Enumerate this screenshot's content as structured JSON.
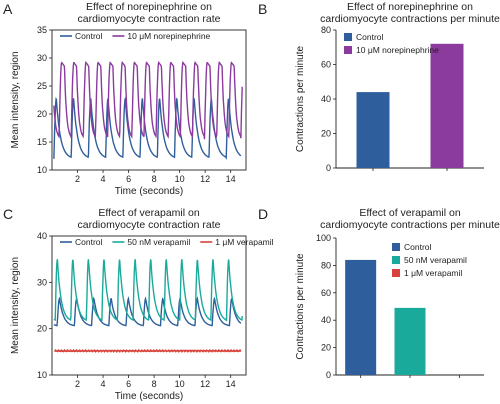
{
  "colors": {
    "blue": "#2e5f9c",
    "purple": "#8b3a9e",
    "teal": "#1aaa9c",
    "red": "#d8423a",
    "axis": "#222222"
  },
  "chart_data": [
    {
      "id": "A",
      "panel_label": "A",
      "type": "line",
      "title": [
        "Effect of norepinephrine on",
        "cardiomyocyte contraction rate"
      ],
      "xlabel": "Time (seconds)",
      "ylabel": "Mean intensity, region",
      "xlim": [
        0,
        15.2
      ],
      "ylim": [
        10,
        35
      ],
      "xticks": [
        2,
        4,
        6,
        8,
        10,
        12,
        14
      ],
      "yticks": [
        10,
        15,
        20,
        25,
        30,
        35
      ],
      "legend_position": "top-left",
      "series": [
        {
          "name": "Control",
          "color": "#2e5f9c",
          "shape": "pulse",
          "base": 12.0,
          "peak": 22.8,
          "period": 1.35,
          "phase": 0.15,
          "x_start": 0.15,
          "x_end": 14.8
        },
        {
          "name": "10 μM norepinephrine",
          "color": "#8b3a9e",
          "shape": "wave",
          "base": 15.5,
          "peak": 29.2,
          "period": 0.95,
          "phase": 0.55,
          "x_start": 0.15,
          "x_end": 14.9
        }
      ]
    },
    {
      "id": "B",
      "panel_label": "B",
      "type": "bar",
      "title": [
        "Effect of norepinephrine on",
        "cardiomyocyte contractions per minute"
      ],
      "xlabel": "",
      "ylabel": "Contractions per minute",
      "ylim": [
        0,
        80
      ],
      "yticks": [
        0,
        20,
        40,
        60,
        80
      ],
      "legend_position": "top-left",
      "categories": [
        "Control",
        "10 μM norepinephrine"
      ],
      "values": [
        44,
        72
      ],
      "bar_colors": [
        "#2e5f9c",
        "#8b3a9e"
      ]
    },
    {
      "id": "C",
      "panel_label": "C",
      "type": "line",
      "title": [
        "Effect of verapamil on",
        "cardiomyocyte contraction rate"
      ],
      "xlabel": "Time (seconds)",
      "ylabel": "Mean intensity, region",
      "xlim": [
        0,
        15.2
      ],
      "ylim": [
        10,
        40
      ],
      "xticks": [
        2,
        4,
        6,
        8,
        10,
        12,
        14
      ],
      "yticks": [
        10,
        20,
        30,
        40
      ],
      "legend_position": "top",
      "series": [
        {
          "name": "Control",
          "color": "#2e5f9c",
          "shape": "pulse",
          "base": 20.5,
          "peak": 26.5,
          "period": 1.35,
          "phase": 0.4,
          "x_start": 0.15,
          "x_end": 14.8
        },
        {
          "name": "50 nM verapamil",
          "color": "#1aaa9c",
          "shape": "pulse",
          "base": 21.5,
          "peak": 35.0,
          "period": 1.22,
          "phase": 0.25,
          "x_start": 0.15,
          "x_end": 14.9
        },
        {
          "name": "1 μM verapamil",
          "color": "#d8423a",
          "shape": "flat",
          "base": 15.0,
          "peak": 15.4,
          "period": 0.3,
          "phase": 0,
          "x_start": 0.2,
          "x_end": 14.8
        }
      ]
    },
    {
      "id": "D",
      "panel_label": "D",
      "type": "bar",
      "title": [
        "Effect of verapamil on",
        "cardiomyocyte contractions per minute"
      ],
      "xlabel": "",
      "ylabel": "Contractions per minute",
      "ylim": [
        0,
        100
      ],
      "yticks": [
        0,
        20,
        40,
        60,
        80,
        100
      ],
      "legend_position": "top-right",
      "categories": [
        "Control",
        "50 nM verapamil",
        "1 μM verapamil"
      ],
      "values": [
        84,
        49,
        0
      ],
      "bar_colors": [
        "#2e5f9c",
        "#1aaa9c",
        "#d8423a"
      ]
    }
  ]
}
